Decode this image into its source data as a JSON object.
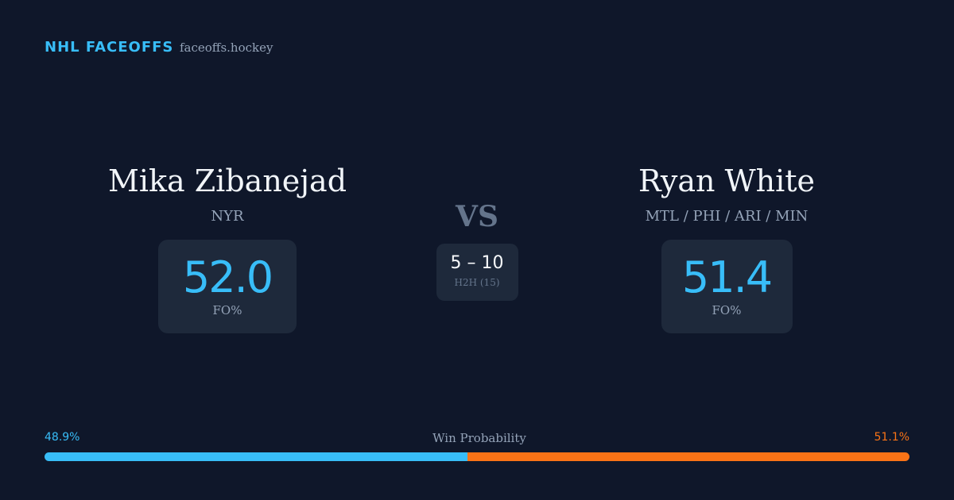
{
  "header": {
    "title": "NHL FACEOFFS",
    "site": "faceoffs.hockey"
  },
  "players": [
    {
      "name": "Mika Zibanejad",
      "team": "NYR",
      "fo_pct": "52.0",
      "fo_label": "FO%"
    },
    {
      "name": "Ryan White",
      "team": "MTL / PHI / ARI / MIN",
      "fo_pct": "51.4",
      "fo_label": "FO%"
    }
  ],
  "vs": "VS",
  "h2h": {
    "score": "5 – 10",
    "label": "H2H (15)"
  },
  "win_probability": {
    "label": "Win Probability",
    "values": [
      48.9,
      51.1
    ],
    "value_labels": [
      "48.9%",
      "51.1%"
    ],
    "colors": [
      "#38bdf8",
      "#f97316"
    ]
  }
}
